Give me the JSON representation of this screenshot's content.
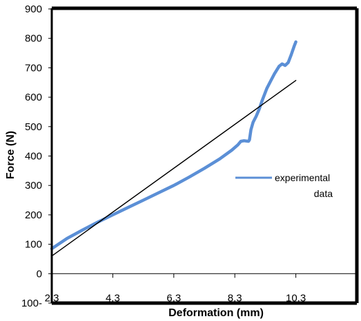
{
  "chart_data": {
    "type": "line",
    "xlabel": "Deformation (mm)",
    "ylabel": "Force (N)",
    "xlim": [
      2.3,
      12.3
    ],
    "ylim": [
      -100,
      900
    ],
    "x_ticks": [
      "2.3",
      "4.3",
      "6.3",
      "8.3",
      "10.3"
    ],
    "x_tick_values": [
      2.3,
      4.3,
      6.3,
      8.3,
      10.3
    ],
    "y_ticks": [
      "100-",
      "0",
      "100",
      "200",
      "300",
      "400",
      "500",
      "600",
      "700",
      "800",
      "900"
    ],
    "y_tick_values": [
      -100,
      0,
      100,
      200,
      300,
      400,
      500,
      600,
      700,
      800,
      900
    ],
    "grid": false,
    "legend_position": "right",
    "series": [
      {
        "name": "experimental data",
        "color": "#5b8fd6",
        "x": [
          2.3,
          2.8,
          3.3,
          3.8,
          4.3,
          4.8,
          5.3,
          5.8,
          6.3,
          6.8,
          7.3,
          7.8,
          8.2,
          8.4,
          8.5,
          8.6,
          8.75,
          8.78,
          8.83,
          8.9,
          9.0,
          9.1,
          9.2,
          9.35,
          9.5,
          9.6,
          9.75,
          9.85,
          9.95,
          10.05,
          10.15,
          10.25,
          10.3
        ],
        "y": [
          85,
          120,
          148,
          175,
          200,
          225,
          250,
          275,
          300,
          328,
          358,
          390,
          420,
          438,
          450,
          452,
          450,
          455,
          490,
          515,
          535,
          560,
          590,
          630,
          660,
          680,
          705,
          713,
          708,
          718,
          745,
          775,
          788
        ]
      },
      {
        "name": "",
        "color": "#000000",
        "style": "trendline",
        "x": [
          2.3,
          10.3
        ],
        "y": [
          60,
          657
        ]
      }
    ]
  }
}
